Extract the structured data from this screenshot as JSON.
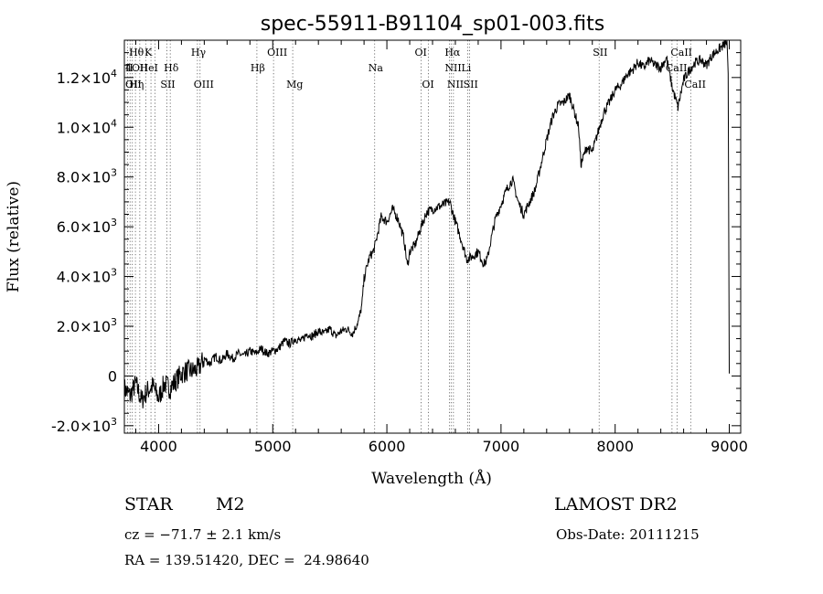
{
  "chart_data": {
    "type": "line",
    "title": "spec-55911-B91104_sp01-003.fits",
    "xlabel": "Wavelength (Å)",
    "ylabel": "Flux (relative)",
    "xlim": [
      3700,
      9100
    ],
    "ylim": [
      -2300,
      13500
    ],
    "x_ticks": [
      4000,
      5000,
      6000,
      7000,
      8000,
      9000
    ],
    "y_ticks": [
      {
        "value": -2000,
        "mant": "-2.0",
        "exp": "3"
      },
      {
        "value": 0,
        "mant": "0",
        "exp": ""
      },
      {
        "value": 2000,
        "mant": "2.0",
        "exp": "3"
      },
      {
        "value": 4000,
        "mant": "4.0",
        "exp": "3"
      },
      {
        "value": 6000,
        "mant": "6.0",
        "exp": "3"
      },
      {
        "value": 8000,
        "mant": "8.0",
        "exp": "3"
      },
      {
        "value": 10000,
        "mant": "1.0",
        "exp": "4"
      },
      {
        "value": 12000,
        "mant": "1.2",
        "exp": "4"
      }
    ],
    "series": [
      {
        "x": [
          3700,
          3750,
          3800,
          3850,
          3900,
          3950,
          4000,
          4050,
          4100,
          4150,
          4200,
          4250,
          4300,
          4350,
          4400,
          4450,
          4500,
          4550,
          4600,
          4650,
          4700,
          4750,
          4800,
          4850,
          4900,
          4950,
          5000,
          5050,
          5100,
          5150,
          5200,
          5250,
          5300,
          5350,
          5400,
          5450,
          5500,
          5550,
          5600,
          5650,
          5700,
          5750,
          5780,
          5800,
          5830,
          5850,
          5880,
          5900,
          5950,
          6000,
          6050,
          6100,
          6150,
          6180,
          6200,
          6250,
          6300,
          6350,
          6400,
          6450,
          6500,
          6550,
          6600,
          6650,
          6700,
          6750,
          6800,
          6850,
          6880,
          6900,
          6950,
          7000,
          7050,
          7100,
          7150,
          7200,
          7250,
          7300,
          7350,
          7400,
          7450,
          7500,
          7550,
          7600,
          7650,
          7680,
          7700,
          7750,
          7800,
          7850,
          7900,
          7950,
          8000,
          8050,
          8100,
          8150,
          8200,
          8250,
          8300,
          8350,
          8400,
          8450,
          8500,
          8550,
          8600,
          8650,
          8700,
          8750,
          8800,
          8850,
          8900,
          8950,
          8980,
          8990,
          9000
        ],
        "y": [
          -500,
          -800,
          -300,
          -1000,
          -600,
          -400,
          -900,
          -300,
          -500,
          -200,
          100,
          200,
          200,
          300,
          700,
          500,
          800,
          600,
          900,
          700,
          900,
          800,
          1000,
          900,
          1100,
          900,
          1000,
          1100,
          1400,
          1300,
          1500,
          1400,
          1700,
          1600,
          1800,
          1700,
          1900,
          1600,
          1800,
          1900,
          1700,
          2200,
          2800,
          3900,
          4500,
          4800,
          5000,
          5300,
          6400,
          6200,
          6700,
          6300,
          5500,
          4400,
          5000,
          5300,
          6000,
          6600,
          6700,
          6800,
          6900,
          7000,
          6200,
          5500,
          4700,
          4800,
          5000,
          4500,
          4700,
          5200,
          6300,
          6900,
          7500,
          7900,
          7000,
          6500,
          7000,
          7500,
          8500,
          9500,
          10400,
          10900,
          11000,
          11300,
          10500,
          10000,
          8500,
          9200,
          9000,
          9800,
          10600,
          11000,
          11500,
          11700,
          12100,
          12300,
          12600,
          12400,
          12700,
          12500,
          12400,
          12800,
          11600,
          10800,
          11900,
          12300,
          12600,
          12700,
          12500,
          12900,
          13100,
          13300,
          13400,
          12000,
          100
        ]
      }
    ],
    "annotations": {
      "row1": [
        {
          "x": 3797,
          "label": "Hθ"
        },
        {
          "x": 3933,
          "label": "K"
        },
        {
          "x": 4340,
          "label": "Hγ"
        },
        {
          "x": 5007,
          "label": "OIII"
        },
        {
          "x": 6300,
          "label": "OI"
        },
        {
          "x": 6563,
          "label": "Hα"
        },
        {
          "x": 7860,
          "label": "SII"
        },
        {
          "x": 8542,
          "label": "CaII"
        }
      ],
      "row2": [
        {
          "x": 3727,
          "label": "4OII"
        },
        {
          "x": 3760,
          "label": "II"
        },
        {
          "x": 3889,
          "label": "HeI"
        },
        {
          "x": 4102,
          "label": "Hδ"
        },
        {
          "x": 4861,
          "label": "Hβ"
        },
        {
          "x": 5893,
          "label": "Na"
        },
        {
          "x": 6563,
          "label": "NII"
        },
        {
          "x": 6708,
          "label": "Li"
        },
        {
          "x": 8498,
          "label": "CaII"
        }
      ],
      "row3": [
        {
          "x": 3727,
          "label": "OII"
        },
        {
          "x": 3798,
          "label": "Hη"
        },
        {
          "x": 4072,
          "label": "SII"
        },
        {
          "x": 4363,
          "label": "OIII"
        },
        {
          "x": 5175,
          "label": "Mg"
        },
        {
          "x": 6363,
          "label": "OI"
        },
        {
          "x": 6583,
          "label": "NII"
        },
        {
          "x": 6725,
          "label": "SII"
        },
        {
          "x": 8662,
          "label": "CaII"
        }
      ],
      "dotted_lines": [
        3727,
        3750,
        3770,
        3797,
        3835,
        3889,
        3933,
        3968,
        4072,
        4102,
        4340,
        4363,
        4861,
        5007,
        5175,
        5893,
        6300,
        6363,
        6548,
        6563,
        6583,
        6708,
        6725,
        7860,
        8498,
        8542,
        8662
      ]
    }
  },
  "footer": {
    "object_class": "STAR",
    "subclass": "M2",
    "survey": "LAMOST DR2",
    "cz": "cz = −71.7 ± 2.1 km/s",
    "obs_date": "Obs-Date: 20111215",
    "coords": "RA = 139.51420, DEC =  24.98640"
  }
}
